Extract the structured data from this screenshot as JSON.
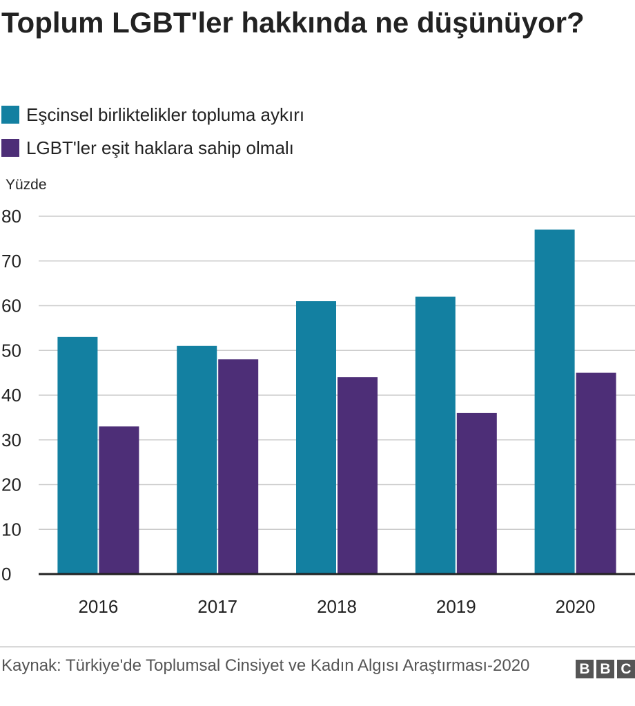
{
  "page": {
    "title": "Toplum LGBT'ler hakkında ne düşünüyor?",
    "source": "Kaynak: Türkiye'de Toplumsal Cinsiyet ve Kadın Algısı Araştırması-2020",
    "logo": [
      "B",
      "B",
      "C"
    ]
  },
  "chart_data": {
    "type": "bar",
    "title": "Toplum LGBT'ler hakkında ne düşünüyor?",
    "ylabel": "Yüzde",
    "xlabel": "",
    "categories": [
      "2016",
      "2017",
      "2018",
      "2019",
      "2020"
    ],
    "series": [
      {
        "name": "Eşcinsel birliktelikler topluma aykırı",
        "color": "#1380a1",
        "values": [
          53,
          51,
          61,
          62,
          77
        ]
      },
      {
        "name": "LGBT'ler eşit haklara sahip olmalı",
        "color": "#4d2e77",
        "values": [
          33,
          48,
          44,
          36,
          45
        ]
      }
    ],
    "ylim": [
      0,
      80
    ],
    "yticks": [
      0,
      10,
      20,
      30,
      40,
      50,
      60,
      70,
      80
    ],
    "grid": true,
    "legend_position": "top-left"
  }
}
